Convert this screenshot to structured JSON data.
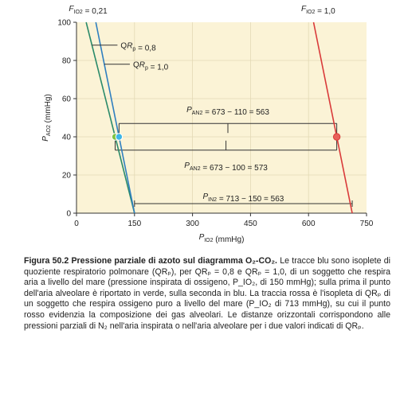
{
  "chart_data": {
    "type": "line",
    "xlabel": "P_IO2 (mmHg)",
    "ylabel": "P_AO2 (mmHg)",
    "xlim": [
      0,
      750
    ],
    "ylim": [
      0,
      100
    ],
    "xticks": [
      0,
      150,
      300,
      450,
      600,
      750
    ],
    "yticks": [
      0,
      20,
      40,
      60,
      80,
      100
    ],
    "xtick_labels": [
      "0",
      "150",
      "300",
      "450",
      "600",
      "750"
    ],
    "ytick_labels": [
      "0",
      "20",
      "40",
      "60",
      "80",
      "100"
    ],
    "top_labels": {
      "left": "F_IO2 = 0,21",
      "right": "F_IO2 = 1,0"
    },
    "series": [
      {
        "name": "QR_p = 0,8",
        "color": "#2a8a6a",
        "x": [
          150,
          25
        ],
        "y": [
          0,
          100
        ]
      },
      {
        "name": "QR_p = 1,0",
        "color": "#2f7fc0",
        "x": [
          150,
          50
        ],
        "y": [
          0,
          100
        ]
      },
      {
        "name": "",
        "color": "#d93a3a",
        "x": [
          713,
          613
        ],
        "y": [
          0,
          100
        ]
      }
    ],
    "points": [
      {
        "name": "alveolar air QR 0.8",
        "x": 100,
        "y": 40,
        "color": "#7fc241"
      },
      {
        "name": "alveolar air QR 1.0",
        "x": 110,
        "y": 40,
        "color": "#3db6e6"
      },
      {
        "name": "alveolar O2",
        "x": 673,
        "y": 40,
        "color": "#e8605a"
      }
    ],
    "annotations": [
      {
        "text": "P_AN2 = 673 − 110 = 563",
        "from": 110,
        "to": 673,
        "y": 47
      },
      {
        "text": "P_AN2 = 673 − 100 = 573",
        "from": 100,
        "to": 673,
        "y": 33
      },
      {
        "text": "P_IN2 = 713 − 150 = 563",
        "from": 150,
        "to": 713,
        "y": 5
      }
    ],
    "legend": [
      "QR_p = 0,8",
      "QR_p = 1,0"
    ]
  },
  "caption": {
    "title": "Figura 50.2   Pressione parziale di azoto sul diagramma O₂-CO₂.",
    "body": " Le tracce blu sono isoplete di quoziente respiratorio polmonare (QRₚ), per QRₚ = 0,8 e QRₚ = 1,0, di un soggetto che respira aria a livello del mare (pressione inspirata di ossigeno, P_IO₂, di 150 mmHg); sulla prima il punto dell'aria alveolare è riportato in verde, sulla seconda in blu. La traccia rossa è l'isopleta di QRₚ di un soggetto che respira ossigeno puro a livello del mare (P_IO₂ di 713 mmHg), su cui il punto rosso evidenzia la composizione dei gas alveolari. Le distanze orizzontali corrispondono alle pressioni parziali di N₂ nell'aria inspirata o nell'aria alveolare per i due valori indicati di QRₚ."
  }
}
